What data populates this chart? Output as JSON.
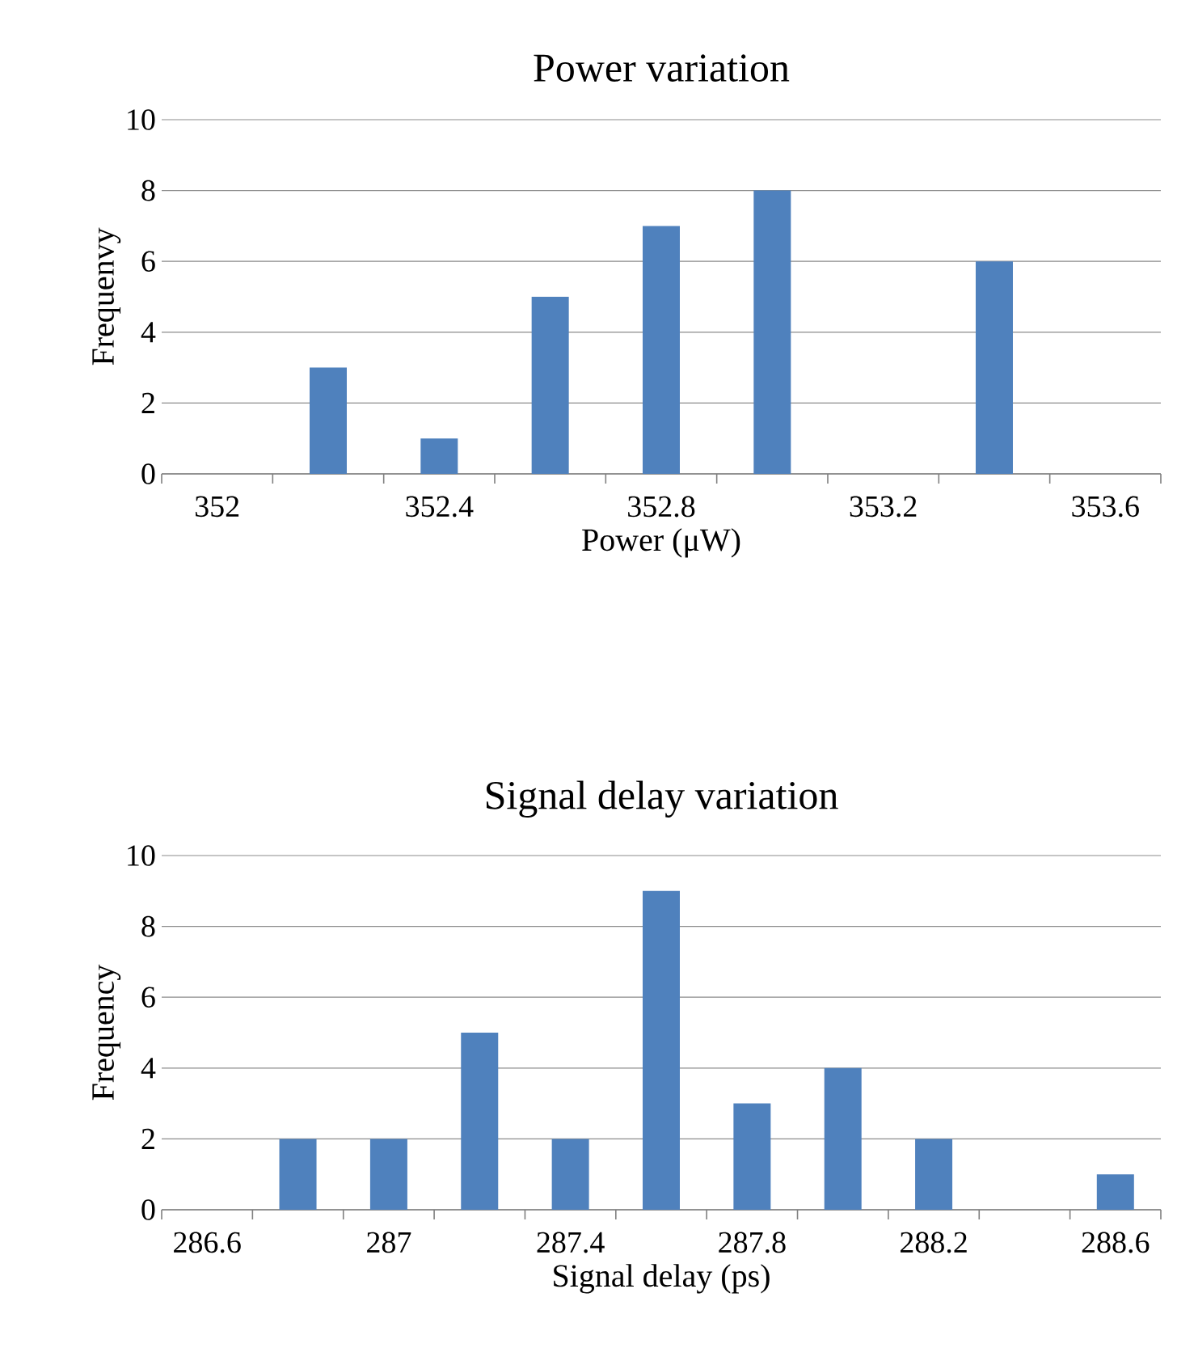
{
  "chart_data": [
    {
      "type": "bar",
      "title": "Power variation",
      "xlabel": "Power (μW)",
      "ylabel": "Frequenvy",
      "categories": [
        "352",
        null,
        "352.4",
        null,
        "352.8",
        null,
        "353.2",
        null,
        "353.6"
      ],
      "values": [
        0,
        3,
        1,
        5,
        7,
        8,
        0,
        6,
        0
      ],
      "color": "#4f81bd",
      "ylim": [
        0,
        10
      ],
      "yticks": [
        0,
        2,
        4,
        6,
        8,
        10
      ],
      "grid": "y"
    },
    {
      "type": "bar",
      "title": "Signal delay variation",
      "xlabel": "Signal delay (ps)",
      "ylabel": "Frequency",
      "categories": [
        "286.6",
        null,
        "287",
        null,
        "287.4",
        null,
        "287.8",
        null,
        "288.2",
        null,
        "288.6"
      ],
      "values": [
        0,
        2,
        2,
        5,
        2,
        9,
        3,
        4,
        2,
        0,
        1
      ],
      "color": "#4f81bd",
      "ylim": [
        0,
        10
      ],
      "yticks": [
        0,
        2,
        4,
        6,
        8,
        10
      ],
      "grid": "y"
    }
  ]
}
